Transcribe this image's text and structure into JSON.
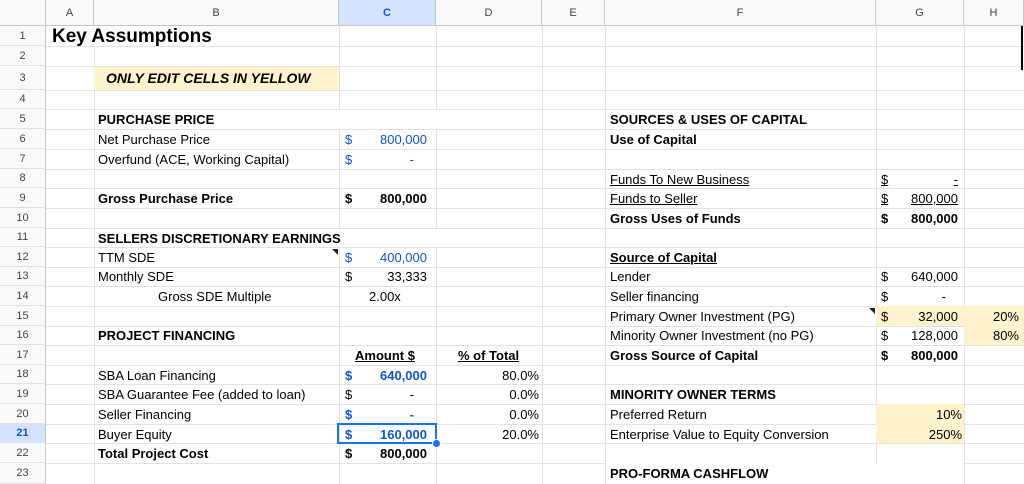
{
  "columns": [
    "A",
    "B",
    "C",
    "D",
    "E",
    "F",
    "G",
    "H"
  ],
  "rows": [
    "1",
    "2",
    "3",
    "4",
    "5",
    "6",
    "7",
    "8",
    "9",
    "10",
    "11",
    "12",
    "13",
    "14",
    "15",
    "16",
    "17",
    "18",
    "19",
    "20",
    "21",
    "22",
    "23"
  ],
  "selected_cell": "C21",
  "colors": {
    "input_yellow": "#fff2cc",
    "input_blue": "#1155cc",
    "selection": "#1a73e8"
  },
  "sheet": {
    "title": "Key Assumptions",
    "note": "ONLY EDIT CELLS IN YELLOW",
    "purchase": {
      "header": "PURCHASE PRICE",
      "net_label": "Net Purchase Price",
      "net_cur": "$",
      "net_val": "800,000",
      "over_label": "Overfund (ACE, Working Capital)",
      "over_cur": "$",
      "over_val": "-",
      "gross_label": "Gross Purchase Price",
      "gross_cur": "$",
      "gross_val": "800,000"
    },
    "sde": {
      "header": "SELLERS DISCRETIONARY EARNINGS",
      "ttm_label": "TTM SDE",
      "ttm_cur": "$",
      "ttm_val": "400,000",
      "monthly_label": "Monthly SDE",
      "monthly_cur": "$",
      "monthly_val": "33,333",
      "multiple_label": "Gross SDE Multiple",
      "multiple_val": "2.00x"
    },
    "financing": {
      "header": "PROJECT FINANCING",
      "amount_header": "Amount $",
      "pct_header": "% of Total",
      "rows": [
        {
          "label": "SBA Loan Financing",
          "cur": "$",
          "amount": "640,000",
          "pct": "80.0%"
        },
        {
          "label": "SBA Guarantee Fee (added to loan)",
          "cur": "$",
          "amount": "-",
          "pct": "0.0%"
        },
        {
          "label": "Seller Financing",
          "cur": "$",
          "amount": "-",
          "pct": "0.0%"
        },
        {
          "label": "Buyer Equity",
          "cur": "$",
          "amount": "160,000",
          "pct": "20.0%"
        }
      ],
      "total_label": "Total Project Cost",
      "total_cur": "$",
      "total_val": "800,000"
    },
    "sources_uses": {
      "header": "SOURCES & USES OF CAPITAL",
      "use_header": "Use of Capital",
      "funds_new_label": "Funds To New Business",
      "funds_new_cur": "$",
      "funds_new_val": "-",
      "funds_seller_label": "Funds to Seller",
      "funds_seller_cur": "$",
      "funds_seller_val": "800,000",
      "gross_uses_label": "Gross Uses of Funds",
      "gross_uses_cur": "$",
      "gross_uses_val": "800,000",
      "source_header": "Source of Capital",
      "lender_label": "Lender",
      "lender_cur": "$",
      "lender_val": "640,000",
      "seller_fin_label": "Seller financing",
      "seller_fin_cur": "$",
      "seller_fin_val": "-",
      "primary_label": "Primary Owner Investment (PG)",
      "primary_cur": "$",
      "primary_val": "32,000",
      "primary_pct": "20%",
      "minority_label": "Minority Owner Investment (no PG)",
      "minority_cur": "$",
      "minority_val": "128,000",
      "minority_pct": "80%",
      "gross_source_label": "Gross Source of Capital",
      "gross_source_cur": "$",
      "gross_source_val": "800,000"
    },
    "minority": {
      "header": "MINORITY OWNER TERMS",
      "pref_label": "Preferred Return",
      "pref_val": "10%",
      "ev_label": "Enterprise Value to Equity Conversion",
      "ev_val": "250%"
    },
    "proforma_header": "PRO-FORMA CASHFLOW"
  }
}
